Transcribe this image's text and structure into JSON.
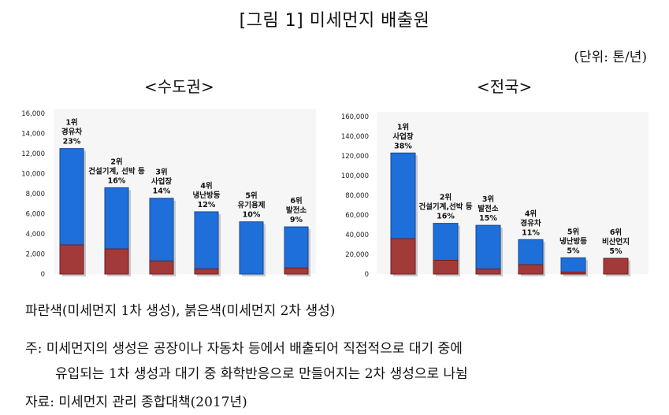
{
  "title": "[그림 1] 미세먼지 배출원",
  "unit": "(단위: 톤/년)",
  "left_region": "<수도권>",
  "right_region": "<전국>",
  "colors": {
    "primary": "#1e6fd9",
    "secondary": "#a33a3a"
  },
  "legend_note": "파란색(미세먼지 1차 생성), 붉은색(미세먼지 2차 생성)",
  "footnote_line1": "주: 미세먼지의 생성은 공장이나 자동차 등에서 배출되어 직접적으로 대기 중에",
  "footnote_line2": "유입되는 1차 생성과 대기 중 화학반응으로 만들어지는 2차 생성으로 나뉨",
  "source": "자료: 미세먼지 관리 종합대책(2017년)",
  "chart_data": [
    {
      "type": "bar",
      "region": "<수도권>",
      "ylim": [
        0,
        16000
      ],
      "yticks": [
        "0",
        "2,000",
        "4,000",
        "6,000",
        "8,000",
        "10,000",
        "12,000",
        "14,000",
        "16,000"
      ],
      "ytick_values": [
        0,
        2000,
        4000,
        6000,
        8000,
        10000,
        12000,
        14000,
        16000
      ],
      "categories": [
        {
          "rank": "1위",
          "name": "경유차",
          "pct": "23%",
          "total": 12500,
          "secondary": 2900
        },
        {
          "rank": "2위",
          "name": "건설기계, 선박 등",
          "pct": "16%",
          "total": 8600,
          "secondary": 2500
        },
        {
          "rank": "3위",
          "name": "사업장",
          "pct": "14%",
          "total": 7550,
          "secondary": 1300
        },
        {
          "rank": "4위",
          "name": "냉난방등",
          "pct": "12%",
          "total": 6200,
          "secondary": 500
        },
        {
          "rank": "5위",
          "name": "유기용제",
          "pct": "10%",
          "total": 5200,
          "secondary": 0
        },
        {
          "rank": "6위",
          "name": "발전소",
          "pct": "9%",
          "total": 4700,
          "secondary": 600
        }
      ]
    },
    {
      "type": "bar",
      "region": "<전국>",
      "ylim": [
        0,
        160000
      ],
      "yticks": [
        "0",
        "20,000",
        "40,000",
        "60,000",
        "80,000",
        "100,000",
        "120,000",
        "140,000",
        "160,000"
      ],
      "ytick_values": [
        0,
        20000,
        40000,
        60000,
        80000,
        100000,
        120000,
        140000,
        160000
      ],
      "categories": [
        {
          "rank": "1위",
          "name": "사업장",
          "pct": "38%",
          "total": 123000,
          "secondary": 36000
        },
        {
          "rank": "2위",
          "name": "건설기계,선박 등",
          "pct": "16%",
          "total": 51500,
          "secondary": 14000
        },
        {
          "rank": "3위",
          "name": "발전소",
          "pct": "15%",
          "total": 49500,
          "secondary": 5000
        },
        {
          "rank": "4위",
          "name": "경유차",
          "pct": "11%",
          "total": 35000,
          "secondary": 9500
        },
        {
          "rank": "5위",
          "name": "냉난방등",
          "pct": "5%",
          "total": 16500,
          "secondary": 2000
        },
        {
          "rank": "6위",
          "name": "비산먼지",
          "pct": "5%",
          "total": 16000,
          "secondary": 16000
        }
      ]
    }
  ]
}
